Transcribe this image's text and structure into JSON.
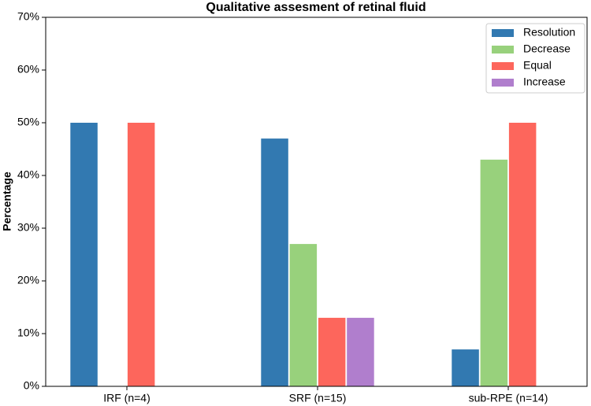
{
  "chart_data": {
    "type": "bar",
    "title": "Qualitative assesment of retinal fluid",
    "y_label": "Percentage",
    "categories": [
      "IRF (n=4)",
      "SRF (n=15)",
      "sub-RPE (n=14)"
    ],
    "series": [
      {
        "name": "Resolution",
        "color": "#3279b1",
        "values": [
          50,
          47,
          7
        ]
      },
      {
        "name": "Decrease",
        "color": "#98d17c",
        "values": [
          0,
          27,
          43
        ]
      },
      {
        "name": "Equal",
        "color": "#fd665c",
        "values": [
          50,
          13,
          50
        ]
      },
      {
        "name": "Increase",
        "color": "#b07ecd",
        "values": [
          0,
          13,
          0
        ]
      }
    ],
    "ylim": [
      0,
      70
    ],
    "yticks": [
      {
        "value": 0,
        "label": "0%"
      },
      {
        "value": 10,
        "label": "10%"
      },
      {
        "value": 20,
        "label": "20%"
      },
      {
        "value": 30,
        "label": "30%"
      },
      {
        "value": 40,
        "label": "40%"
      },
      {
        "value": 50,
        "label": "50%"
      },
      {
        "value": 60,
        "label": "60%"
      },
      {
        "value": 70,
        "label": "70%"
      }
    ],
    "legend": "upper right"
  }
}
